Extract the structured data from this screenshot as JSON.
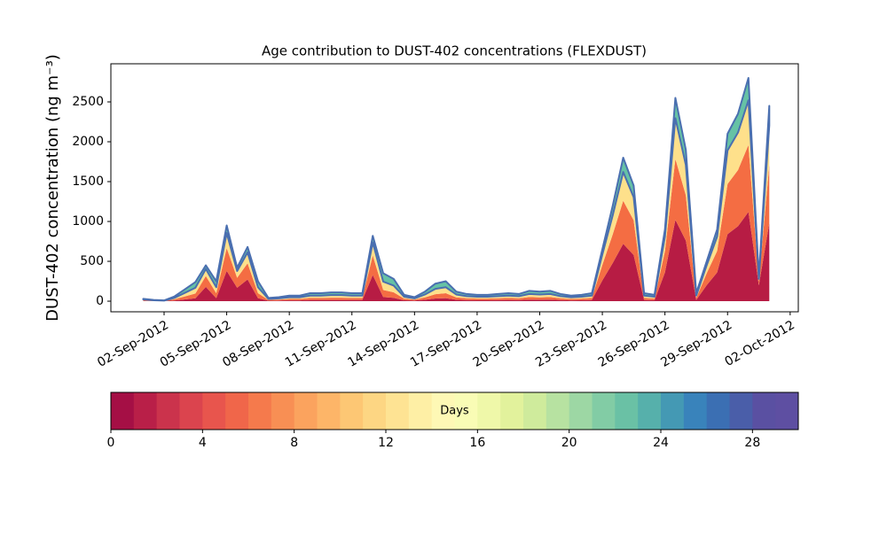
{
  "chart_data": {
    "type": "stacked_area",
    "title": "Age contribution to DUST-402 concentrations (FLEXDUST)",
    "y_label": "DUST-402 concentration (ng m⁻³)",
    "x": [
      1,
      1.5,
      2,
      2.5,
      3,
      3.5,
      4,
      4.5,
      5,
      5.5,
      6,
      6.5,
      7,
      7.5,
      8,
      8.5,
      9,
      9.5,
      10,
      10.5,
      11,
      11.5,
      12,
      12.5,
      13,
      13.5,
      14,
      14.5,
      15,
      15.5,
      16,
      16.5,
      17,
      17.5,
      18,
      18.5,
      19,
      19.5,
      20,
      20.5,
      21,
      21.5,
      22,
      22.5,
      23,
      23.5,
      24,
      24.5,
      25,
      25.5,
      26,
      26.5,
      27,
      27.5,
      28,
      28.5,
      29,
      29.5,
      30,
      30.5,
      31
    ],
    "series": [
      {
        "color": "#b71c44",
        "values": [
          5,
          2,
          2,
          9,
          22,
          36,
          180,
          38,
          380,
          168,
          272,
          38,
          6,
          8,
          10,
          10,
          15,
          15,
          16,
          16,
          15,
          15,
          328,
          52,
          42,
          12,
          8,
          18,
          33,
          38,
          18,
          14,
          12,
          12,
          14,
          15,
          14,
          20,
          18,
          20,
          14,
          10,
          12,
          15,
          260,
          480,
          720,
          580,
          15,
          12,
          360,
          1020,
          760,
          15,
          200,
          360,
          840,
          940,
          1120,
          200,
          980
        ]
      },
      {
        "color": "#f46d43",
        "values": [
          8,
          4,
          2,
          15,
          38,
          60,
          135,
          62,
          285,
          126,
          204,
          62,
          10,
          12,
          18,
          18,
          25,
          25,
          28,
          28,
          25,
          25,
          246,
          88,
          70,
          20,
          12,
          30,
          55,
          62,
          30,
          22,
          20,
          20,
          22,
          25,
          22,
          32,
          30,
          32,
          22,
          18,
          20,
          25,
          195,
          360,
          540,
          435,
          25,
          20,
          270,
          765,
          570,
          25,
          150,
          270,
          630,
          705,
          840,
          50,
          735
        ]
      },
      {
        "color": "#fee08b",
        "values": [
          9,
          5,
          3,
          18,
          45,
          72,
          90,
          75,
          190,
          84,
          136,
          75,
          12,
          15,
          21,
          21,
          30,
          30,
          33,
          33,
          30,
          30,
          164,
          105,
          84,
          24,
          15,
          36,
          66,
          75,
          36,
          27,
          24,
          24,
          27,
          30,
          27,
          39,
          36,
          39,
          27,
          21,
          24,
          30,
          130,
          240,
          360,
          290,
          30,
          24,
          180,
          510,
          380,
          30,
          100,
          180,
          420,
          470,
          560,
          30,
          490
        ]
      },
      {
        "color": "#66c2a5",
        "values": [
          8,
          4,
          3,
          18,
          45,
          72,
          45,
          75,
          95,
          42,
          68,
          75,
          12,
          15,
          21,
          21,
          30,
          30,
          33,
          33,
          30,
          30,
          82,
          105,
          84,
          24,
          15,
          36,
          66,
          75,
          36,
          27,
          24,
          24,
          27,
          30,
          27,
          39,
          36,
          39,
          27,
          21,
          24,
          30,
          65,
          120,
          180,
          145,
          30,
          24,
          90,
          255,
          190,
          30,
          50,
          90,
          210,
          235,
          280,
          20,
          245
        ]
      }
    ],
    "edge_color": "#4a6fb0",
    "xlim": [
      -0.55,
      32.39
    ],
    "xticks": [
      {
        "value": 2,
        "label": "02-Sep-2012"
      },
      {
        "value": 5,
        "label": "05-Sep-2012"
      },
      {
        "value": 8,
        "label": "08-Sep-2012"
      },
      {
        "value": 11,
        "label": "11-Sep-2012"
      },
      {
        "value": 14,
        "label": "14-Sep-2012"
      },
      {
        "value": 17,
        "label": "17-Sep-2012"
      },
      {
        "value": 20,
        "label": "20-Sep-2012"
      },
      {
        "value": 23,
        "label": "23-Sep-2012"
      },
      {
        "value": 26,
        "label": "26-Sep-2012"
      },
      {
        "value": 29,
        "label": "29-Sep-2012"
      },
      {
        "value": 32,
        "label": "02-Oct-2012"
      }
    ],
    "ylim": [
      -133,
      2978
    ],
    "yticks": [
      0,
      500,
      1000,
      1500,
      2000,
      2500
    ],
    "colorbar": {
      "label": "Days",
      "lim": [
        0,
        30
      ],
      "ticks": [
        0,
        4,
        8,
        12,
        16,
        20,
        24,
        28
      ],
      "colors": [
        "#a50f45",
        "#b91f48",
        "#cb334c",
        "#db444e",
        "#e8554d",
        "#f0664a",
        "#f57a4c",
        "#f88f54",
        "#fba35e",
        "#fdb568",
        "#fdc774",
        "#fdd683",
        "#fee393",
        "#feefa5",
        "#fef8b5",
        "#f9fcb5",
        "#eff8a9",
        "#e2f29c",
        "#cfeb9c",
        "#b7e2a1",
        "#9dd7a4",
        "#82cca5",
        "#6ac1a5",
        "#56b0ab",
        "#4499b4",
        "#3983bb",
        "#3b6fb3",
        "#4a5ea9",
        "#5a50a2",
        "#5e4fa2"
      ]
    }
  }
}
